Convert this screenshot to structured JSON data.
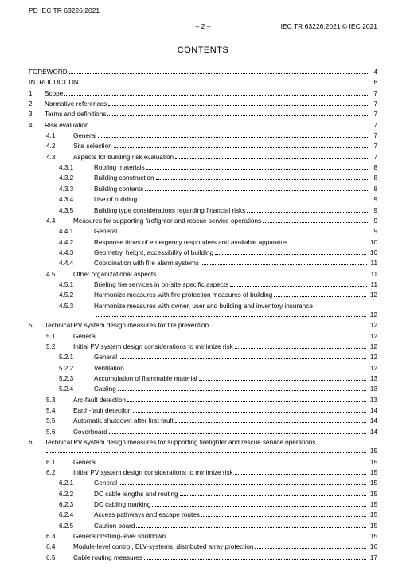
{
  "doc_header": {
    "top_left": "PD IEC TR 63226:2021",
    "page_marker": "– 2 –",
    "right": "IEC TR 63226:2021 © IEC 2021",
    "title": "CONTENTS"
  },
  "toc": [
    {
      "level": 0,
      "num": "",
      "label": "FOREWORD",
      "page": "4"
    },
    {
      "level": 0,
      "num": "",
      "label": "INTRODUCTION",
      "page": "6"
    },
    {
      "level": 0,
      "num": "1",
      "label": "Scope",
      "page": "7"
    },
    {
      "level": 0,
      "num": "2",
      "label": "Normative references",
      "page": "7"
    },
    {
      "level": 0,
      "num": "3",
      "label": "Terms and definitions",
      "page": "7"
    },
    {
      "level": 0,
      "num": "4",
      "label": "Risk evaluation",
      "page": "7"
    },
    {
      "level": 1,
      "num": "4.1",
      "label": "General",
      "page": "7"
    },
    {
      "level": 1,
      "num": "4.2",
      "label": "Site selection",
      "page": "7"
    },
    {
      "level": 1,
      "num": "4.3",
      "label": "Aspects for building risk evaluation",
      "page": "7"
    },
    {
      "level": 2,
      "num": "4.3.1",
      "label": "Roofing materials",
      "page": "8"
    },
    {
      "level": 2,
      "num": "4.3.2",
      "label": "Building construction",
      "page": "8"
    },
    {
      "level": 2,
      "num": "4.3.3",
      "label": "Building contents",
      "page": "8"
    },
    {
      "level": 2,
      "num": "4.3.4",
      "label": "Use of building",
      "page": "9"
    },
    {
      "level": 2,
      "num": "4.3.5",
      "label": "Building type considerations regarding financial risks",
      "page": "9"
    },
    {
      "level": 1,
      "num": "4.4",
      "label": "Measures for supporting firefighter and rescue service operations",
      "page": "9"
    },
    {
      "level": 2,
      "num": "4.4.1",
      "label": "General",
      "page": "9"
    },
    {
      "level": 2,
      "num": "4.4.2",
      "label": "Response times of emergency responders and available apparatus",
      "page": "10"
    },
    {
      "level": 2,
      "num": "4.4.3",
      "label": "Geometry, height, accessibility of building",
      "page": "10"
    },
    {
      "level": 2,
      "num": "4.4.4",
      "label": "Coordination with fire alarm systems",
      "page": "11"
    },
    {
      "level": 1,
      "num": "4.5",
      "label": "Other organizational aspects",
      "page": "11"
    },
    {
      "level": 2,
      "num": "4.5.1",
      "label": "Briefing fire services in on-site specific aspects",
      "page": "11"
    },
    {
      "level": 2,
      "num": "4.5.2",
      "label": "Harmonize measures with fire protection measures of building",
      "page": "12"
    },
    {
      "level": 2,
      "num": "4.5.3",
      "label": "Harmonize measures with owner, user and building and inventory insurance",
      "page": "12",
      "wrap": true
    },
    {
      "level": 0,
      "num": "5",
      "label": "Technical PV system design measures for fire prevention",
      "page": "12"
    },
    {
      "level": 1,
      "num": "5.1",
      "label": "General",
      "page": "12"
    },
    {
      "level": 1,
      "num": "5.2",
      "label": "Initial PV system design considerations to minimize risk",
      "page": "12"
    },
    {
      "level": 2,
      "num": "5.2.1",
      "label": "General",
      "page": "12"
    },
    {
      "level": 2,
      "num": "5.2.2",
      "label": "Ventilation",
      "page": "12"
    },
    {
      "level": 2,
      "num": "5.2.3",
      "label": "Accumulation of flammable material",
      "page": "13"
    },
    {
      "level": 2,
      "num": "5.2.4",
      "label": "Cabling",
      "page": "13"
    },
    {
      "level": 1,
      "num": "5.3",
      "label": "Arc-fault detection",
      "page": "13"
    },
    {
      "level": 1,
      "num": "5.4",
      "label": "Earth-fault detection",
      "page": "14"
    },
    {
      "level": 1,
      "num": "5.5",
      "label": "Automatic shutdown after first fault",
      "page": "14"
    },
    {
      "level": 1,
      "num": "5.6",
      "label": "Coverboard",
      "page": "14"
    },
    {
      "level": 0,
      "num": "6",
      "label": "Technical PV system design measures for supporting firefighter and rescue service operations",
      "page": "15",
      "wrap": true
    },
    {
      "level": 1,
      "num": "6.1",
      "label": "General",
      "page": "15"
    },
    {
      "level": 1,
      "num": "6.2",
      "label": "Initial PV system design considerations to minimize risk",
      "page": "15"
    },
    {
      "level": 2,
      "num": "6.2.1",
      "label": "General",
      "page": "15"
    },
    {
      "level": 2,
      "num": "6.2.2",
      "label": "DC cable lengths and routing",
      "page": "15"
    },
    {
      "level": 2,
      "num": "6.2.3",
      "label": "DC cabling marking",
      "page": "15"
    },
    {
      "level": 2,
      "num": "6.2.4",
      "label": "Access pathways and escape routes",
      "page": "15"
    },
    {
      "level": 2,
      "num": "6.2.5",
      "label": "Caution board",
      "page": "15"
    },
    {
      "level": 1,
      "num": "6.3",
      "label": "Generator/string-level shutdown",
      "page": "15"
    },
    {
      "level": 1,
      "num": "6.4",
      "label": "Module-level control, ELV-systems, distributed array protection",
      "page": "16"
    },
    {
      "level": 1,
      "num": "6.5",
      "label": "Cable routing measures",
      "page": "17"
    }
  ]
}
